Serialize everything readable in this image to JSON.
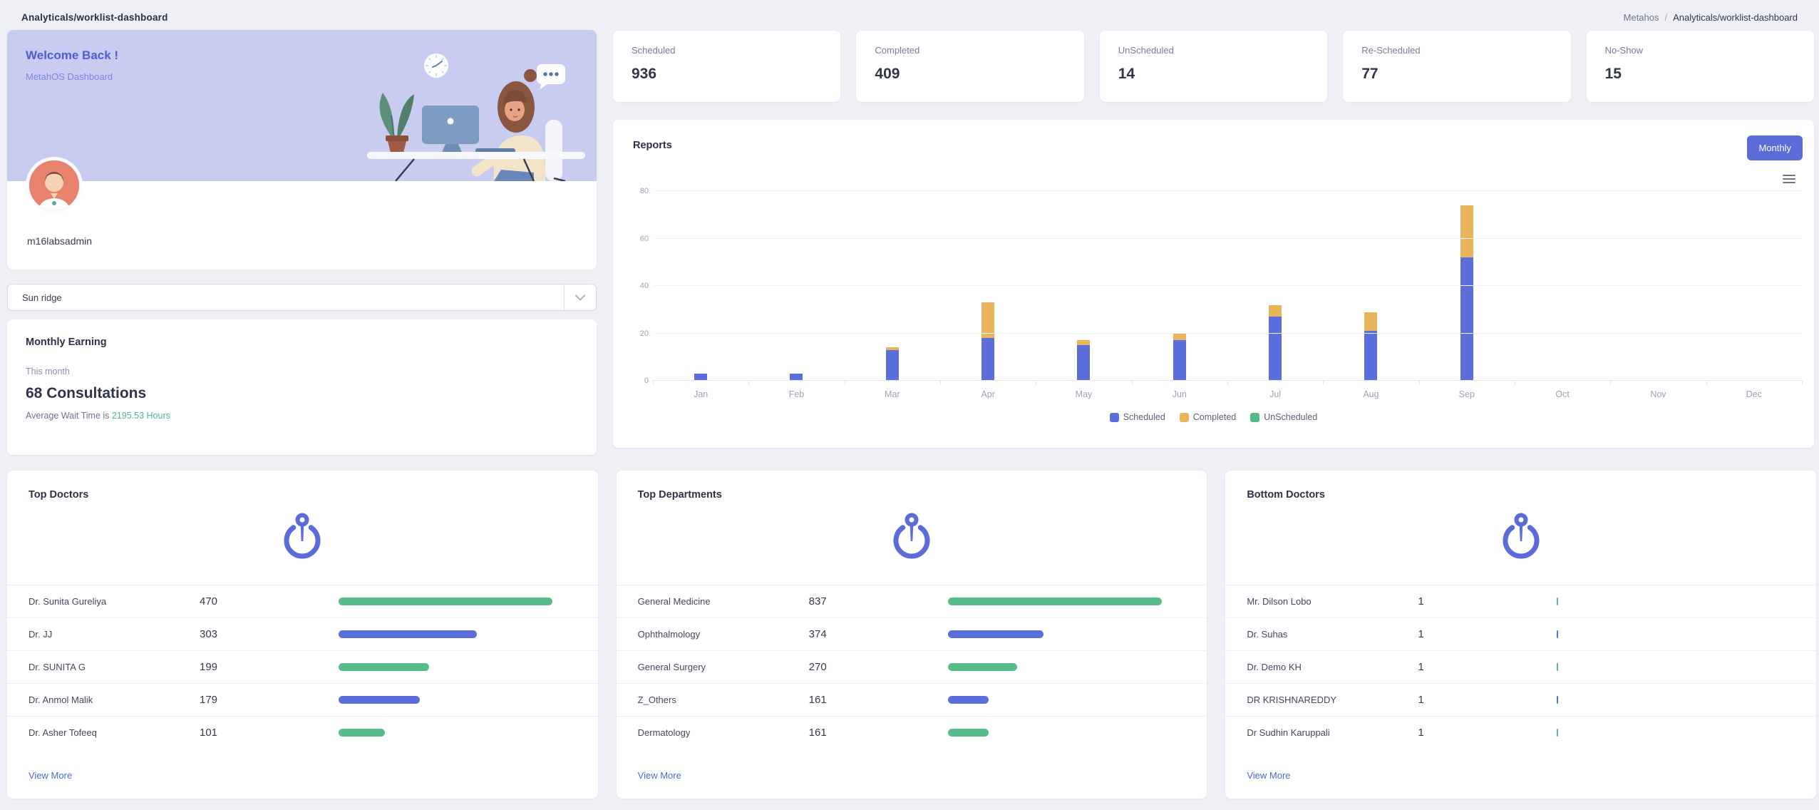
{
  "header": {
    "title": "Analyticals/worklist-dashboard",
    "breadcrumb": {
      "root": "Metahos",
      "separator": "/",
      "current": "Analyticals/worklist-dashboard"
    }
  },
  "welcome_card": {
    "greeting": "Welcome Back !",
    "subtitle": "MetahOS Dashboard",
    "username": "m16labsadmin"
  },
  "branch_select": {
    "value": "Sun ridge"
  },
  "monthly_earning": {
    "title": "Monthly Earning",
    "period_label": "This month",
    "consultations": "68 Consultations",
    "wait_prefix": "Average Wait Time is ",
    "wait_value": "2195.53 Hours"
  },
  "stats": {
    "cards": [
      {
        "label": "Scheduled",
        "value": "936"
      },
      {
        "label": "Completed",
        "value": "409"
      },
      {
        "label": "UnScheduled",
        "value": "14"
      },
      {
        "label": "Re-Scheduled",
        "value": "77"
      },
      {
        "label": "No-Show",
        "value": "15"
      }
    ]
  },
  "reports": {
    "title": "Reports",
    "range_button": "Monthly"
  },
  "chart_data": {
    "type": "bar",
    "stacked": true,
    "title": "Reports",
    "categories": [
      "Jan",
      "Feb",
      "Mar",
      "Apr",
      "May",
      "Jun",
      "Jul",
      "Aug",
      "Sep",
      "Oct",
      "Nov",
      "Dec"
    ],
    "series": [
      {
        "name": "Scheduled",
        "color": "#5b6edb",
        "values": [
          3,
          3,
          13,
          18,
          15,
          17,
          27,
          21,
          52,
          0,
          0,
          0
        ]
      },
      {
        "name": "Completed",
        "color": "#e8b45c",
        "values": [
          0,
          0,
          1,
          15,
          2,
          3,
          5,
          8,
          22,
          0,
          0,
          0
        ]
      },
      {
        "name": "UnScheduled",
        "color": "#55b98a",
        "values": [
          0,
          0,
          0,
          0,
          0,
          0,
          0,
          0,
          0,
          0,
          0,
          0
        ]
      }
    ],
    "xlabel": "",
    "ylabel": "",
    "ylim": [
      0,
      80
    ],
    "yticks": [
      0,
      20,
      40,
      60,
      80
    ],
    "grid": true,
    "legend_position": "bottom"
  },
  "panels": [
    {
      "title": "Top Doctors",
      "bar_scale_max": 522,
      "view_more": "View More",
      "items": [
        {
          "name": "Dr. Sunita Gureliya",
          "value": 470,
          "color": "#57bb8a"
        },
        {
          "name": "Dr. JJ",
          "value": 303,
          "color": "#5b6edb"
        },
        {
          "name": "Dr. SUNITA G",
          "value": 199,
          "color": "#57bb8a"
        },
        {
          "name": "Dr. Anmol Malik",
          "value": 179,
          "color": "#5b6edb"
        },
        {
          "name": "Dr. Asher Tofeeq",
          "value": 101,
          "color": "#57bb8a"
        }
      ]
    },
    {
      "title": "Top Departments",
      "bar_scale_max": 930,
      "view_more": "View More",
      "items": [
        {
          "name": "General Medicine",
          "value": 837,
          "color": "#57bb8a"
        },
        {
          "name": "Ophthalmology",
          "value": 374,
          "color": "#5b6edb"
        },
        {
          "name": "General Surgery",
          "value": 270,
          "color": "#57bb8a"
        },
        {
          "name": "Z_Others",
          "value": 161,
          "color": "#5b6edb"
        },
        {
          "name": "Dermatology",
          "value": 161,
          "color": "#57bb8a"
        }
      ]
    },
    {
      "title": "Bottom Doctors",
      "bar_scale_max": 400,
      "view_more": "View More",
      "items": [
        {
          "name": "Mr. Dilson Lobo",
          "value": 1,
          "color": "#57bb8a"
        },
        {
          "name": "Dr. Suhas",
          "value": 1,
          "color": "#5b6edb"
        },
        {
          "name": "Dr. Demo KH",
          "value": 1,
          "color": "#57bb8a"
        },
        {
          "name": "DR KRISHNAREDDY",
          "value": 1,
          "color": "#5b6edb"
        },
        {
          "name": "Dr Sudhin Karuppali",
          "value": 1,
          "color": "#57bb8a"
        }
      ]
    }
  ],
  "colors": {
    "accent": "#5b6cd9",
    "green": "#55b98a",
    "chart_blue": "#5b6edb",
    "chart_orange": "#e8b45c",
    "hero_background": "#c9ccf1"
  }
}
